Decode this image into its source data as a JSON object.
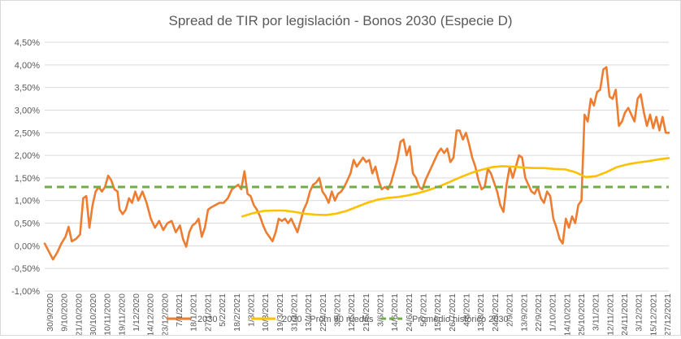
{
  "chart_data": {
    "type": "line",
    "title": "Spread de TIR por legislación - Bonos 2030 (Especie D)",
    "xlabel": "",
    "ylabel": "",
    "ylim": [
      -0.01,
      0.045
    ],
    "yticks": [
      {
        "value": 0.045,
        "label": "4,50%"
      },
      {
        "value": 0.04,
        "label": "4,00%"
      },
      {
        "value": 0.035,
        "label": "3,50%"
      },
      {
        "value": 0.03,
        "label": "3,00%"
      },
      {
        "value": 0.025,
        "label": "2,50%"
      },
      {
        "value": 0.02,
        "label": "2,00%"
      },
      {
        "value": 0.015,
        "label": "1,50%"
      },
      {
        "value": 0.01,
        "label": "1,00%"
      },
      {
        "value": 0.005,
        "label": "0,50%"
      },
      {
        "value": 0.0,
        "label": "0,00%"
      },
      {
        "value": -0.005,
        "label": "-0,50%"
      },
      {
        "value": -0.01,
        "label": "-1,00%"
      }
    ],
    "xticks": [
      "30/9/2020",
      "9/10/2020",
      "21/10/2020",
      "30/10/2020",
      "10/11/2020",
      "19/11/2020",
      "1/12/2020",
      "14/12/2020",
      "23/12/2020",
      "7/1/2021",
      "18/1/2021",
      "27/1/2021",
      "5/2/2021",
      "18/2/2021",
      "1/3/2021",
      "10/3/2021",
      "19/3/2021",
      "31/3/2021",
      "13/4/2021",
      "22/4/2021",
      "3/5/2021",
      "12/5/2021",
      "21/5/2021",
      "3/6/2021",
      "14/6/2021",
      "24/6/2021",
      "5/7/2021",
      "15/7/2021",
      "26/7/2021",
      "4/8/2021",
      "13/8/2021",
      "24/8/2021",
      "2/9/2021",
      "13/9/2021",
      "22/9/2021",
      "1/10/2021",
      "14/10/2021",
      "25/10/2021",
      "3/11/2021",
      "12/11/2021",
      "24/11/2021",
      "3/12/2021",
      "15/12/2021",
      "27/12/2021"
    ],
    "grid": true,
    "legend_position": "bottom",
    "series": [
      {
        "name": "2030",
        "color": "#ed7d31",
        "values": [
          [
            0,
            0.0005
          ],
          [
            0.8,
            -0.003
          ],
          [
            1.2,
            -0.0015
          ],
          [
            1.6,
            0.0005
          ],
          [
            2.0,
            0.002
          ],
          [
            2.3,
            0.0042
          ],
          [
            2.6,
            0.001
          ],
          [
            3.0,
            0.0015
          ],
          [
            3.4,
            0.0025
          ],
          [
            3.7,
            0.0105
          ],
          [
            4.0,
            0.011
          ],
          [
            4.3,
            0.004
          ],
          [
            4.6,
            0.009
          ],
          [
            4.9,
            0.012
          ],
          [
            5.2,
            0.013
          ],
          [
            5.5,
            0.012
          ],
          [
            5.8,
            0.013
          ],
          [
            6.1,
            0.0155
          ],
          [
            6.4,
            0.0145
          ],
          [
            6.7,
            0.0125
          ],
          [
            7.0,
            0.012
          ],
          [
            7.2,
            0.008
          ],
          [
            7.5,
            0.007
          ],
          [
            7.8,
            0.008
          ],
          [
            8.1,
            0.0105
          ],
          [
            8.4,
            0.0095
          ],
          [
            8.7,
            0.012
          ],
          [
            9.0,
            0.01
          ],
          [
            9.4,
            0.012
          ],
          [
            9.8,
            0.0095
          ],
          [
            10.2,
            0.006
          ],
          [
            10.6,
            0.004
          ],
          [
            11.0,
            0.0055
          ],
          [
            11.4,
            0.0035
          ],
          [
            11.8,
            0.005
          ],
          [
            12.2,
            0.0055
          ],
          [
            12.6,
            0.003
          ],
          [
            13.0,
            0.0045
          ],
          [
            13.3,
            0.0015
          ],
          [
            13.6,
            -0.0002
          ],
          [
            13.9,
            0.003
          ],
          [
            14.2,
            0.0045
          ],
          [
            14.5,
            0.005
          ],
          [
            14.8,
            0.006
          ],
          [
            15.1,
            0.002
          ],
          [
            15.4,
            0.004
          ],
          [
            15.7,
            0.008
          ],
          [
            16.0,
            0.0085
          ],
          [
            16.4,
            0.009
          ],
          [
            16.8,
            0.0095
          ],
          [
            17.2,
            0.0095
          ],
          [
            17.6,
            0.0105
          ],
          [
            18.0,
            0.0125
          ],
          [
            18.3,
            0.013
          ],
          [
            18.6,
            0.0135
          ],
          [
            18.9,
            0.0125
          ],
          [
            19.2,
            0.0165
          ],
          [
            19.5,
            0.0115
          ],
          [
            19.8,
            0.011
          ],
          [
            20.1,
            0.009
          ],
          [
            20.4,
            0.008
          ],
          [
            20.7,
            0.0065
          ],
          [
            21.0,
            0.0045
          ],
          [
            21.3,
            0.003
          ],
          [
            21.6,
            0.002
          ],
          [
            21.9,
            0.001
          ],
          [
            22.2,
            0.003
          ],
          [
            22.5,
            0.006
          ],
          [
            22.8,
            0.0055
          ],
          [
            23.1,
            0.006
          ],
          [
            23.4,
            0.005
          ],
          [
            23.7,
            0.006
          ],
          [
            24.0,
            0.0045
          ],
          [
            24.3,
            0.003
          ],
          [
            24.6,
            0.0055
          ],
          [
            24.9,
            0.008
          ],
          [
            25.2,
            0.0095
          ],
          [
            25.5,
            0.012
          ],
          [
            25.8,
            0.0135
          ],
          [
            26.1,
            0.014
          ],
          [
            26.4,
            0.015
          ],
          [
            26.7,
            0.012
          ],
          [
            27.0,
            0.011
          ],
          [
            27.3,
            0.0095
          ],
          [
            27.6,
            0.012
          ],
          [
            27.9,
            0.01
          ],
          [
            28.2,
            0.0115
          ],
          [
            28.5,
            0.012
          ],
          [
            28.8,
            0.013
          ],
          [
            29.1,
            0.0145
          ],
          [
            29.4,
            0.016
          ],
          [
            29.7,
            0.019
          ],
          [
            30.0,
            0.0175
          ],
          [
            30.3,
            0.0185
          ],
          [
            30.6,
            0.0195
          ],
          [
            30.9,
            0.0185
          ],
          [
            31.2,
            0.019
          ],
          [
            31.5,
            0.016
          ],
          [
            31.8,
            0.0175
          ],
          [
            32.1,
            0.0145
          ],
          [
            32.4,
            0.0125
          ],
          [
            32.7,
            0.013
          ],
          [
            33.0,
            0.0125
          ],
          [
            33.3,
            0.014
          ],
          [
            33.6,
            0.0165
          ],
          [
            33.9,
            0.019
          ],
          [
            34.2,
            0.023
          ],
          [
            34.5,
            0.0235
          ],
          [
            34.8,
            0.02
          ],
          [
            35.1,
            0.022
          ],
          [
            35.4,
            0.016
          ],
          [
            35.7,
            0.015
          ],
          [
            36.0,
            0.013
          ],
          [
            36.3,
            0.0125
          ],
          [
            36.6,
            0.0145
          ],
          [
            36.9,
            0.016
          ],
          [
            37.2,
            0.0175
          ],
          [
            37.5,
            0.019
          ],
          [
            37.8,
            0.0205
          ],
          [
            38.1,
            0.0215
          ],
          [
            38.4,
            0.0205
          ],
          [
            38.7,
            0.0215
          ],
          [
            39.0,
            0.0185
          ],
          [
            39.3,
            0.0195
          ],
          [
            39.6,
            0.0255
          ],
          [
            39.9,
            0.0255
          ],
          [
            40.2,
            0.0235
          ],
          [
            40.5,
            0.025
          ],
          [
            40.8,
            0.0225
          ],
          [
            41.1,
            0.0195
          ],
          [
            41.4,
            0.0175
          ],
          [
            41.7,
            0.0145
          ],
          [
            42.0,
            0.0125
          ],
          [
            42.3,
            0.013
          ],
          [
            42.6,
            0.017
          ],
          [
            42.9,
            0.016
          ],
          [
            43.2,
            0.014
          ],
          [
            43.5,
            0.012
          ],
          [
            43.8,
            0.009
          ],
          [
            44.1,
            0.0075
          ],
          [
            44.4,
            0.0135
          ],
          [
            44.7,
            0.0175
          ],
          [
            45.0,
            0.015
          ],
          [
            45.3,
            0.0175
          ],
          [
            45.6,
            0.02
          ],
          [
            45.9,
            0.0195
          ],
          [
            46.2,
            0.015
          ],
          [
            46.5,
            0.0135
          ],
          [
            46.8,
            0.012
          ],
          [
            47.1,
            0.0115
          ],
          [
            47.4,
            0.013
          ],
          [
            47.7,
            0.0105
          ],
          [
            48.0,
            0.0095
          ],
          [
            48.3,
            0.012
          ],
          [
            48.6,
            0.011
          ],
          [
            48.9,
            0.006
          ],
          [
            49.2,
            0.004
          ],
          [
            49.5,
            0.0015
          ],
          [
            49.8,
            0.0005
          ],
          [
            50.1,
            0.006
          ],
          [
            50.4,
            0.004
          ],
          [
            50.7,
            0.0065
          ],
          [
            51.0,
            0.005
          ],
          [
            51.3,
            0.009
          ],
          [
            51.6,
            0.01
          ],
          [
            51.9,
            0.029
          ],
          [
            52.2,
            0.0275
          ],
          [
            52.5,
            0.0325
          ],
          [
            52.8,
            0.031
          ],
          [
            53.1,
            0.034
          ],
          [
            53.4,
            0.0345
          ],
          [
            53.7,
            0.039
          ],
          [
            54.0,
            0.0395
          ],
          [
            54.3,
            0.033
          ],
          [
            54.6,
            0.0325
          ],
          [
            54.9,
            0.0345
          ],
          [
            55.2,
            0.0265
          ],
          [
            55.5,
            0.0275
          ],
          [
            55.8,
            0.0295
          ],
          [
            56.1,
            0.0305
          ],
          [
            56.4,
            0.029
          ],
          [
            56.7,
            0.0275
          ],
          [
            57.0,
            0.0325
          ],
          [
            57.3,
            0.0335
          ],
          [
            57.6,
            0.0295
          ],
          [
            57.9,
            0.0265
          ],
          [
            58.2,
            0.029
          ],
          [
            58.5,
            0.026
          ],
          [
            58.8,
            0.0285
          ],
          [
            59.1,
            0.0255
          ],
          [
            59.4,
            0.0285
          ],
          [
            59.7,
            0.025
          ],
          [
            60.0,
            0.025
          ]
        ]
      },
      {
        "name": "2030 - Prom 90 ruedas",
        "color": "#ffc000",
        "values": [
          [
            19.0,
            0.0065
          ],
          [
            20.0,
            0.0072
          ],
          [
            21.0,
            0.0077
          ],
          [
            22.0,
            0.0078
          ],
          [
            23.0,
            0.0078
          ],
          [
            24.0,
            0.0075
          ],
          [
            25.0,
            0.0071
          ],
          [
            26.0,
            0.0069
          ],
          [
            27.0,
            0.0068
          ],
          [
            28.0,
            0.0071
          ],
          [
            29.0,
            0.0077
          ],
          [
            30.0,
            0.0086
          ],
          [
            31.0,
            0.0095
          ],
          [
            32.0,
            0.0102
          ],
          [
            33.0,
            0.0106
          ],
          [
            34.0,
            0.0108
          ],
          [
            35.0,
            0.0112
          ],
          [
            36.0,
            0.0117
          ],
          [
            37.0,
            0.0124
          ],
          [
            38.0,
            0.0132
          ],
          [
            39.0,
            0.0142
          ],
          [
            40.0,
            0.0152
          ],
          [
            41.0,
            0.0161
          ],
          [
            42.0,
            0.0168
          ],
          [
            43.0,
            0.0174
          ],
          [
            44.0,
            0.0176
          ],
          [
            45.0,
            0.0175
          ],
          [
            46.0,
            0.0173
          ],
          [
            47.0,
            0.0172
          ],
          [
            48.0,
            0.0172
          ],
          [
            49.0,
            0.017
          ],
          [
            50.0,
            0.0169
          ],
          [
            51.0,
            0.0163
          ],
          [
            52.0,
            0.0152
          ],
          [
            53.0,
            0.0154
          ],
          [
            54.0,
            0.0163
          ],
          [
            55.0,
            0.0174
          ],
          [
            56.0,
            0.018
          ],
          [
            57.0,
            0.0184
          ],
          [
            58.0,
            0.0187
          ],
          [
            59.0,
            0.0191
          ],
          [
            60.0,
            0.0194
          ]
        ]
      },
      {
        "name": "Promedio histórico 2030",
        "color": "#70ad47",
        "dashed": true,
        "values": [
          [
            0,
            0.013
          ],
          [
            60,
            0.013
          ]
        ]
      }
    ]
  }
}
